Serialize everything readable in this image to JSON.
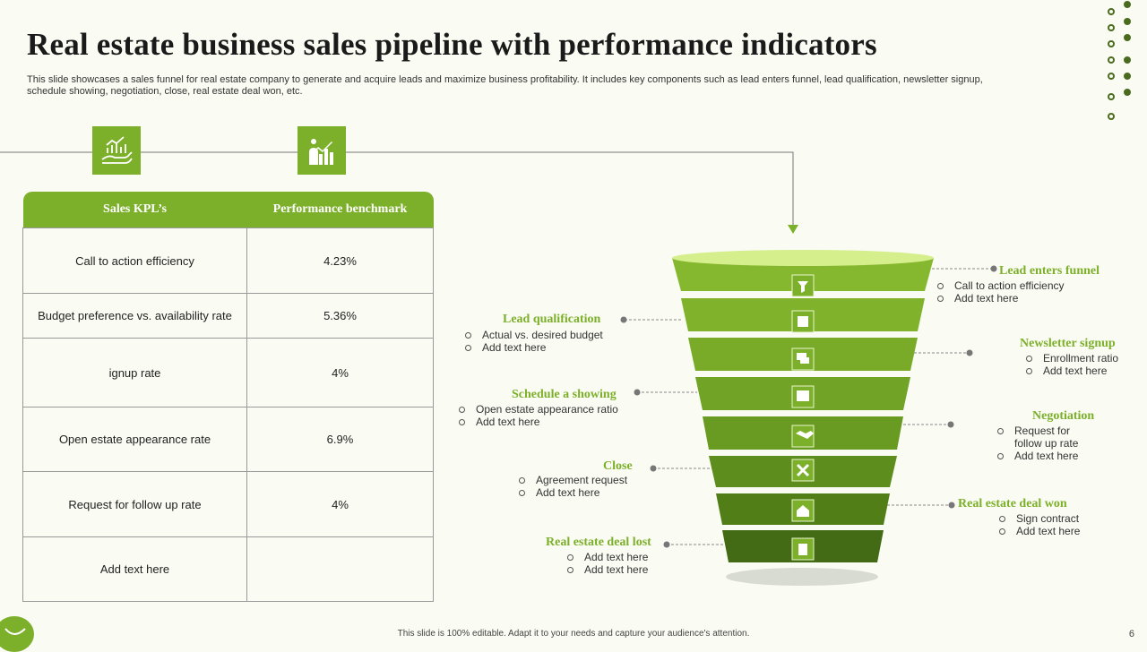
{
  "title": "Real estate business sales pipeline with performance indicators",
  "subtitle": "This slide showcases a sales funnel for real estate company to generate and acquire leads and maximize business profitability. It includes key components such as lead enters funnel, lead qualification, newsletter signup, schedule showing, negotiation, close, real estate deal won, etc.",
  "colors": {
    "accent": "#7cb02a",
    "dark_accent": "#4a6b1e",
    "background": "#fafbf2"
  },
  "icons": [
    "hand-growth-chart-icon",
    "presentation-chart-icon"
  ],
  "table": {
    "headers": [
      "Sales KPL’s",
      "Performance benchmark"
    ],
    "rows": [
      [
        "Call to action efficiency",
        "4.23%"
      ],
      [
        "Budget preference  vs.  availability rate",
        "5.36%"
      ],
      [
        "ignup rate",
        "4%"
      ],
      [
        "Open estate appearance rate",
        "6.9%"
      ],
      [
        "Request for follow up rate",
        "4%"
      ],
      [
        "Add text here",
        ""
      ]
    ]
  },
  "funnel_icons": [
    "funnel-icon",
    "document-icon",
    "chat-icon",
    "calendar-icon",
    "handshake-icon",
    "cross-icon",
    "house-icon",
    "trash-icon"
  ],
  "stages": {
    "lead_enters": {
      "label": "Lead enters funnel",
      "bullets": [
        "Call to action efficiency",
        "Add text here"
      ]
    },
    "lead_qualification": {
      "label": "Lead qualification",
      "bullets": [
        "Actual vs. desired budget",
        "Add text here"
      ]
    },
    "newsletter": {
      "label": "Newsletter signup",
      "bullets": [
        "Enrollment ratio",
        "Add text here"
      ]
    },
    "schedule": {
      "label": "Schedule a showing",
      "bullets": [
        "Open estate appearance ratio",
        "Add text here"
      ]
    },
    "negotiation": {
      "label": "Negotiation",
      "bullets": [
        "Request for follow up rate",
        "Add text here"
      ]
    },
    "close": {
      "label": "Close",
      "bullets": [
        "Agreement request",
        "Add text here"
      ]
    },
    "deal_won": {
      "label": "Real estate deal won",
      "bullets": [
        "Sign contract",
        "Add text here"
      ]
    },
    "deal_lost": {
      "label": "Real estate deal lost",
      "bullets": [
        "Add text here",
        "Add text here"
      ]
    }
  },
  "footer": "This slide is 100% editable.  Adapt it to your needs and capture your audience's attention.",
  "page_number": "6"
}
